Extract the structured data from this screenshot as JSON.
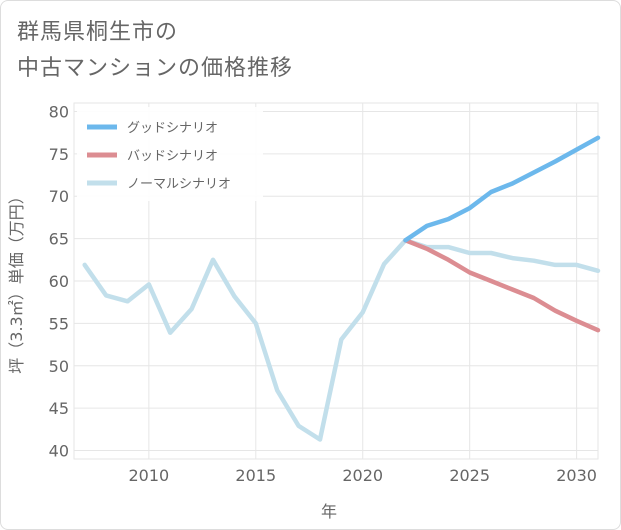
{
  "title": {
    "line1": "群馬県桐生市の",
    "line2": "中古マンションの価格推移"
  },
  "chart_data": {
    "type": "line",
    "xlabel": "年",
    "ylabel": "坪（3.3㎡）単価（万円）",
    "xlim": [
      2006.5,
      2031
    ],
    "ylim": [
      39,
      81
    ],
    "x_ticks": [
      2010,
      2015,
      2020,
      2025,
      2030
    ],
    "y_ticks": [
      40,
      45,
      50,
      55,
      60,
      65,
      70,
      75,
      80
    ],
    "grid": true,
    "legend_position": "top-left",
    "series": [
      {
        "name": "グッドシナリオ",
        "color": "#6cb8ec",
        "x": [
          2022,
          2023,
          2024,
          2025,
          2026,
          2027,
          2028,
          2029,
          2030,
          2031
        ],
        "y": [
          64.8,
          66.5,
          67.3,
          68.6,
          70.5,
          71.5,
          72.8,
          74.1,
          75.5,
          76.9
        ]
      },
      {
        "name": "バッドシナリオ",
        "color": "#dc8d92",
        "x": [
          2022,
          2023,
          2024,
          2025,
          2026,
          2027,
          2028,
          2029,
          2030,
          2031
        ],
        "y": [
          64.8,
          63.8,
          62.5,
          61.0,
          60.0,
          59.0,
          58.0,
          56.5,
          55.3,
          54.2
        ]
      },
      {
        "name": "ノーマルシナリオ",
        "color": "#c2dfeb",
        "x": [
          2007,
          2008,
          2009,
          2010,
          2011,
          2012,
          2013,
          2014,
          2015,
          2016,
          2017,
          2018,
          2019,
          2020,
          2021,
          2022,
          2023,
          2024,
          2025,
          2026,
          2027,
          2028,
          2029,
          2030,
          2031
        ],
        "y": [
          61.9,
          58.3,
          57.6,
          59.6,
          53.9,
          56.7,
          62.5,
          58.2,
          55.0,
          47.1,
          42.9,
          41.3,
          53.1,
          56.3,
          62.0,
          64.8,
          64.0,
          64.0,
          63.3,
          63.3,
          62.7,
          62.4,
          61.9,
          61.9,
          61.2
        ]
      }
    ]
  }
}
